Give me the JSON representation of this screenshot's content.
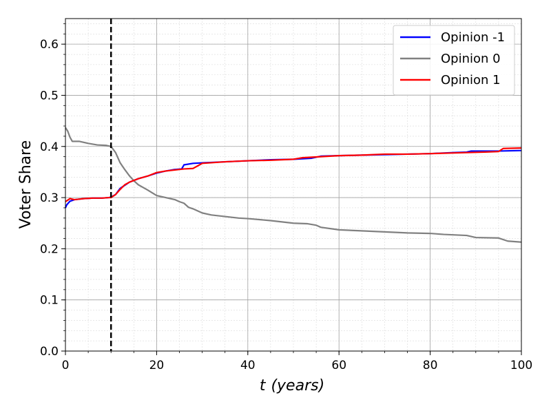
{
  "chart_data": {
    "type": "line",
    "xlabel": "t (years)",
    "xlabel_var": "t",
    "xlabel_unit": "(years)",
    "ylabel": "Voter Share",
    "xlim": [
      0,
      100
    ],
    "ylim": [
      0,
      0.65
    ],
    "xticks": [
      0,
      20,
      40,
      60,
      80,
      100
    ],
    "yticks": [
      0.0,
      0.1,
      0.2,
      0.3,
      0.4,
      0.5,
      0.6
    ],
    "x_minor_step": 5,
    "y_minor_step": 0.02,
    "grid": true,
    "legend_position": "top-right",
    "vline_x": 10,
    "series": [
      {
        "name": "Opinion -1",
        "color": "#0000ff",
        "points": [
          [
            0,
            0.28
          ],
          [
            0.3,
            0.286
          ],
          [
            1,
            0.293
          ],
          [
            2,
            0.296
          ],
          [
            4,
            0.298
          ],
          [
            6,
            0.299
          ],
          [
            8,
            0.299
          ],
          [
            9.5,
            0.3
          ],
          [
            10,
            0.301
          ],
          [
            11,
            0.306
          ],
          [
            12,
            0.318
          ],
          [
            14,
            0.33
          ],
          [
            16,
            0.337
          ],
          [
            18,
            0.342
          ],
          [
            20,
            0.348
          ],
          [
            22,
            0.352
          ],
          [
            24,
            0.355
          ],
          [
            25.5,
            0.356
          ],
          [
            26,
            0.364
          ],
          [
            28,
            0.367
          ],
          [
            30,
            0.368
          ],
          [
            35,
            0.37
          ],
          [
            40,
            0.372
          ],
          [
            45,
            0.374
          ],
          [
            50,
            0.375
          ],
          [
            54,
            0.377
          ],
          [
            56,
            0.381
          ],
          [
            60,
            0.382
          ],
          [
            65,
            0.383
          ],
          [
            70,
            0.384
          ],
          [
            75,
            0.385
          ],
          [
            80,
            0.386
          ],
          [
            85,
            0.388
          ],
          [
            88,
            0.389
          ],
          [
            89,
            0.391
          ],
          [
            95,
            0.391
          ],
          [
            100,
            0.392
          ]
        ]
      },
      {
        "name": "Opinion 0",
        "color": "#808080",
        "points": [
          [
            0,
            0.437
          ],
          [
            0.5,
            0.43
          ],
          [
            1,
            0.418
          ],
          [
            1.5,
            0.41
          ],
          [
            3,
            0.41
          ],
          [
            5,
            0.406
          ],
          [
            7,
            0.403
          ],
          [
            9,
            0.402
          ],
          [
            10,
            0.4
          ],
          [
            11,
            0.388
          ],
          [
            12,
            0.368
          ],
          [
            13,
            0.355
          ],
          [
            14,
            0.343
          ],
          [
            15,
            0.333
          ],
          [
            16,
            0.325
          ],
          [
            18,
            0.315
          ],
          [
            20,
            0.304
          ],
          [
            22,
            0.3
          ],
          [
            24,
            0.296
          ],
          [
            25,
            0.292
          ],
          [
            26,
            0.289
          ],
          [
            27,
            0.281
          ],
          [
            28,
            0.278
          ],
          [
            30,
            0.27
          ],
          [
            32,
            0.266
          ],
          [
            35,
            0.263
          ],
          [
            38,
            0.26
          ],
          [
            40,
            0.259
          ],
          [
            45,
            0.255
          ],
          [
            48,
            0.252
          ],
          [
            50,
            0.25
          ],
          [
            53,
            0.249
          ],
          [
            55,
            0.246
          ],
          [
            56,
            0.242
          ],
          [
            60,
            0.237
          ],
          [
            65,
            0.235
          ],
          [
            70,
            0.233
          ],
          [
            75,
            0.231
          ],
          [
            80,
            0.23
          ],
          [
            83,
            0.228
          ],
          [
            88,
            0.226
          ],
          [
            90,
            0.222
          ],
          [
            95,
            0.221
          ],
          [
            97,
            0.215
          ],
          [
            100,
            0.213
          ]
        ]
      },
      {
        "name": "Opinion 1",
        "color": "#ff0000",
        "points": [
          [
            0,
            0.292
          ],
          [
            0.5,
            0.295
          ],
          [
            1,
            0.298
          ],
          [
            2,
            0.296
          ],
          [
            4,
            0.298
          ],
          [
            6,
            0.299
          ],
          [
            8,
            0.299
          ],
          [
            9.5,
            0.3
          ],
          [
            10,
            0.3
          ],
          [
            11,
            0.306
          ],
          [
            12,
            0.316
          ],
          [
            13,
            0.325
          ],
          [
            14,
            0.33
          ],
          [
            16,
            0.337
          ],
          [
            18,
            0.342
          ],
          [
            20,
            0.349
          ],
          [
            22,
            0.352
          ],
          [
            24,
            0.354
          ],
          [
            26,
            0.356
          ],
          [
            28,
            0.357
          ],
          [
            29,
            0.362
          ],
          [
            30,
            0.367
          ],
          [
            35,
            0.37
          ],
          [
            40,
            0.372
          ],
          [
            45,
            0.373
          ],
          [
            50,
            0.375
          ],
          [
            52,
            0.378
          ],
          [
            56,
            0.38
          ],
          [
            60,
            0.382
          ],
          [
            65,
            0.383
          ],
          [
            70,
            0.385
          ],
          [
            75,
            0.385
          ],
          [
            80,
            0.386
          ],
          [
            84,
            0.387
          ],
          [
            88,
            0.388
          ],
          [
            92,
            0.389
          ],
          [
            95,
            0.39
          ],
          [
            96,
            0.396
          ],
          [
            100,
            0.397
          ]
        ]
      }
    ]
  }
}
